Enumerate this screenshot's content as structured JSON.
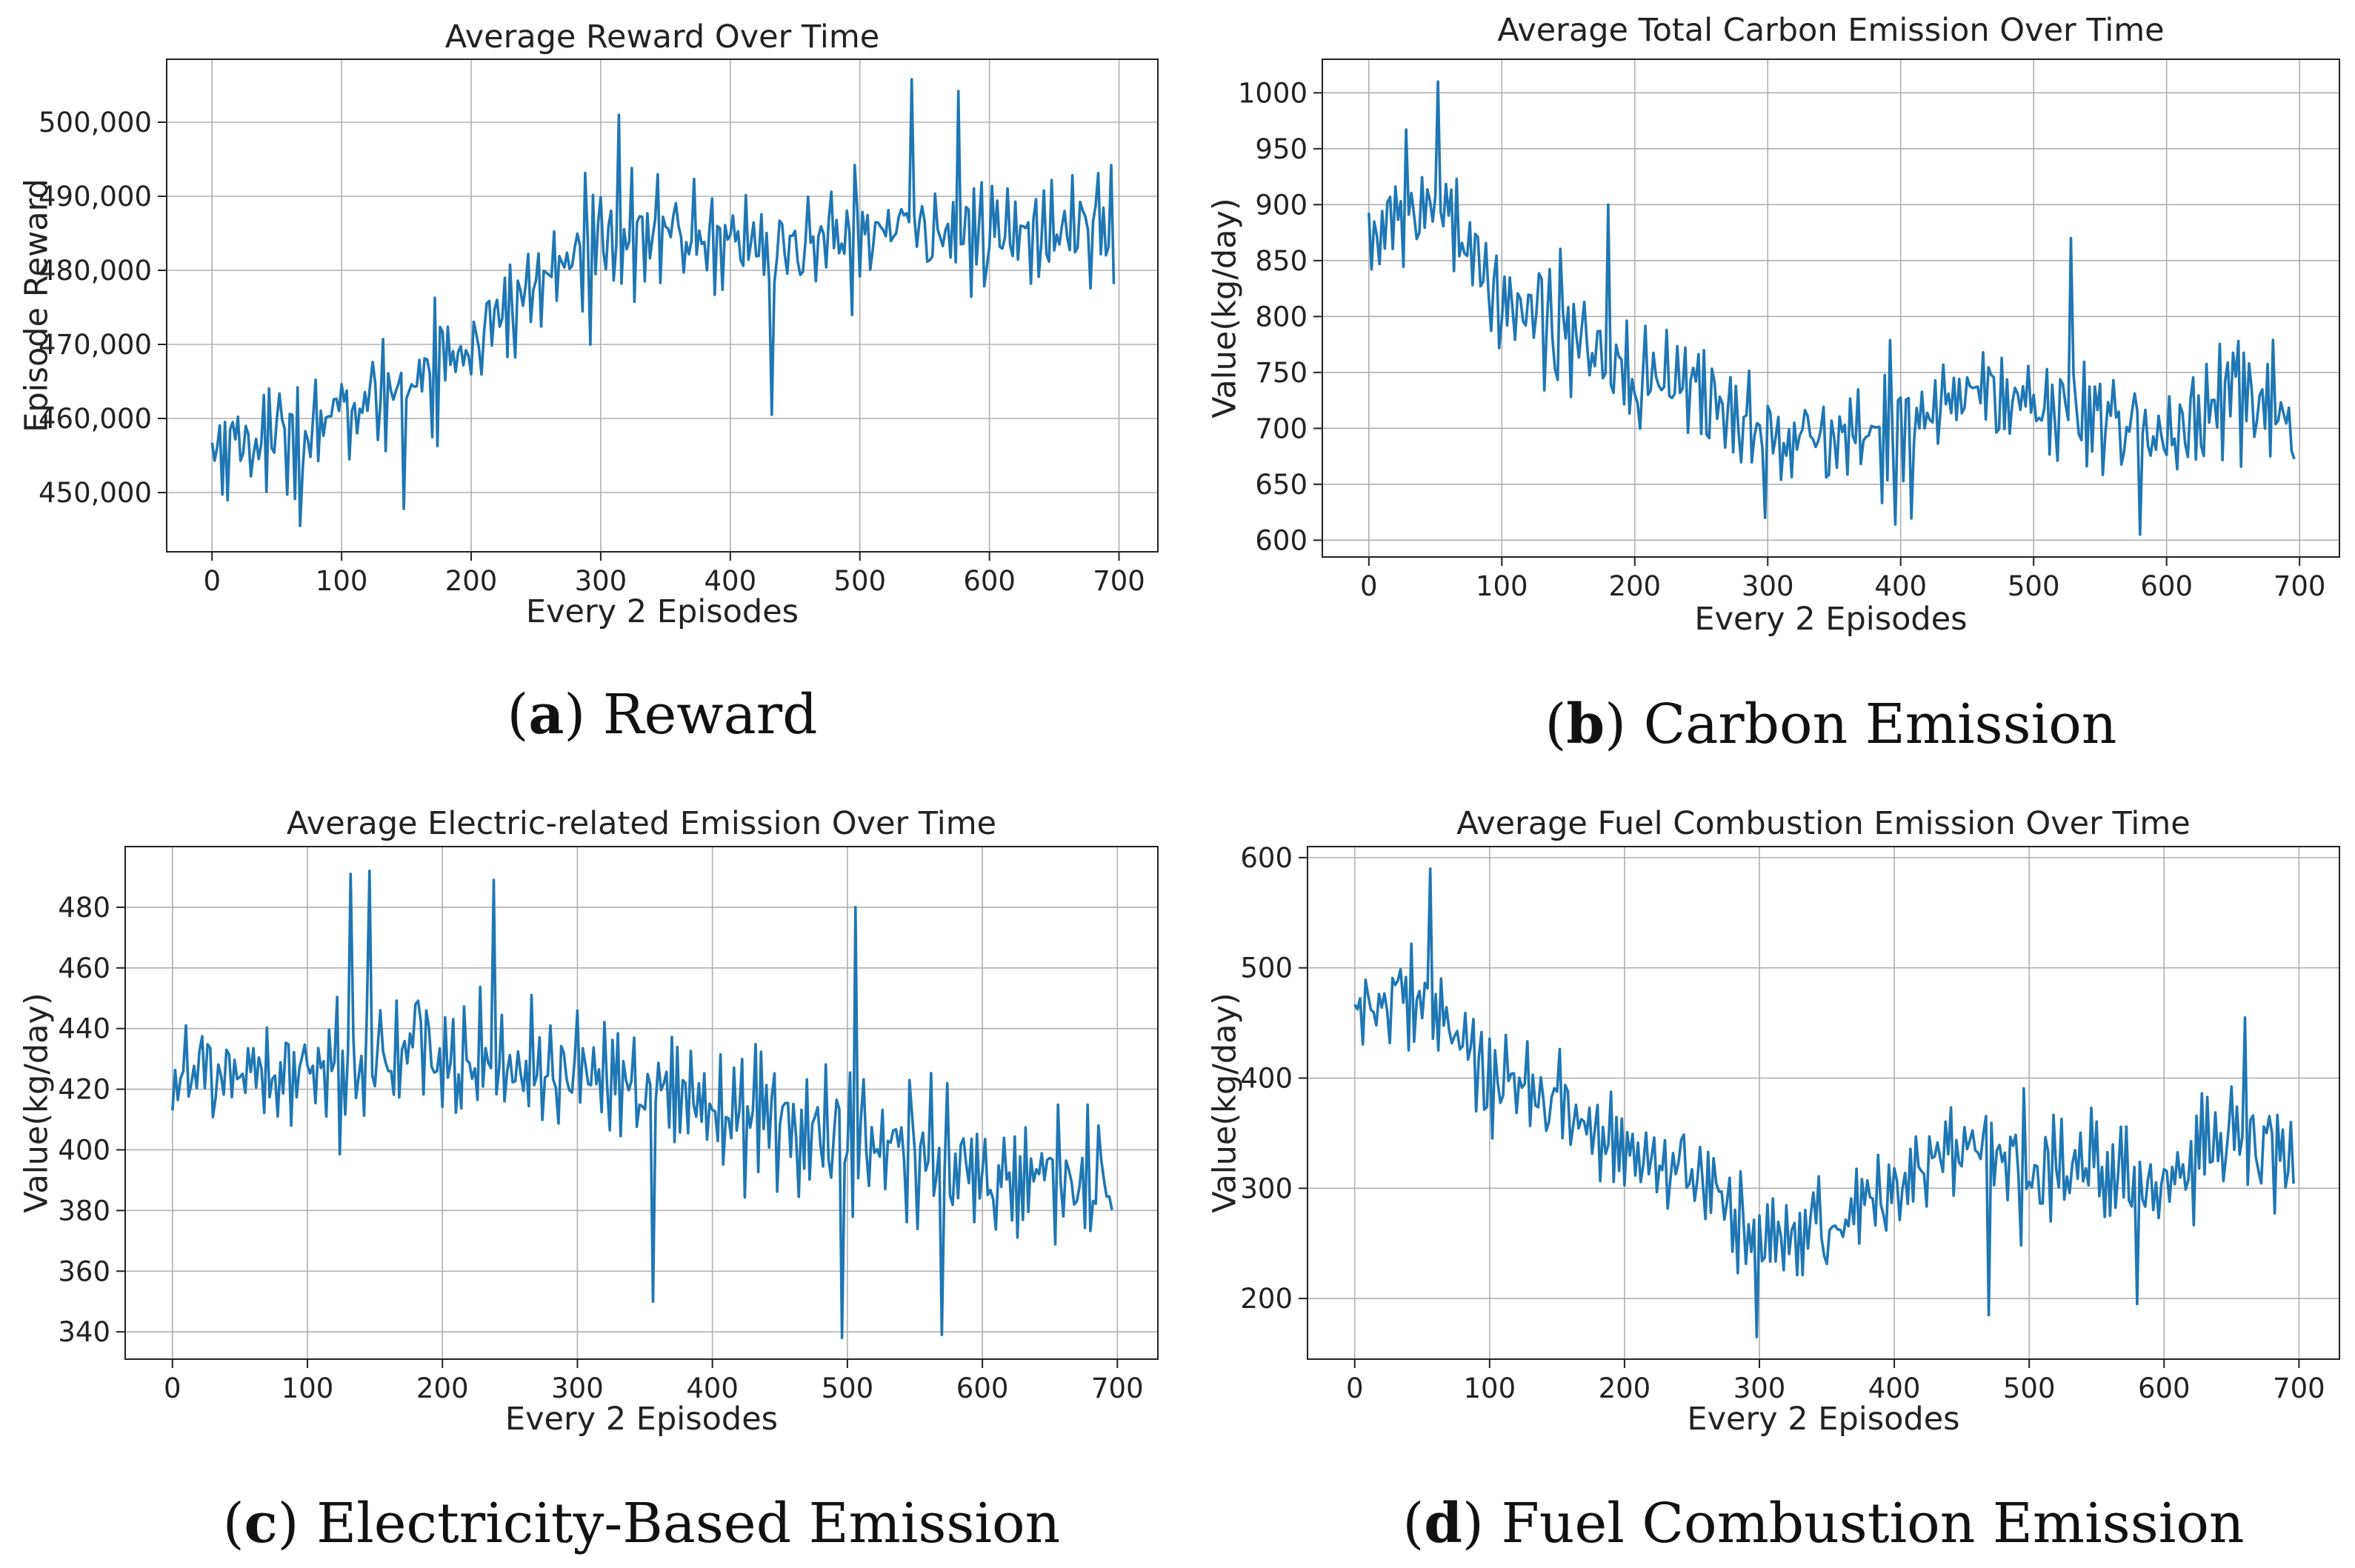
{
  "line_color": "#1f77b4",
  "chart_data": [
    {
      "type": "line",
      "title": "Average Reward Over Time",
      "xlabel": "Every 2 Episodes",
      "ylabel": "Episode Reward",
      "caption": {
        "letter": "a",
        "text": "Reward"
      },
      "xlim": [
        -35,
        730
      ],
      "ylim": [
        442000,
        508500
      ],
      "xticks": [
        "0",
        "100",
        "200",
        "300",
        "400",
        "500",
        "600",
        "700"
      ],
      "yticks": [
        "450,000",
        "460,000",
        "470,000",
        "480,000",
        "490,000",
        "500,000"
      ],
      "ytick_values": [
        450000,
        460000,
        470000,
        480000,
        490000,
        500000
      ],
      "grid": true,
      "series": [
        {
          "name": "Average Reward",
          "x_step": 2,
          "n_points": 349,
          "anchors_x": [
            0,
            50,
            100,
            150,
            200,
            250,
            300,
            350,
            400,
            450,
            500,
            550,
            600,
            650,
            695
          ],
          "trend": [
            456000,
            457500,
            460500,
            465000,
            470000,
            478000,
            484500,
            485000,
            484000,
            483000,
            485000,
            486000,
            484500,
            485000,
            487000
          ],
          "noise": 6000,
          "peaks": [
            [
              313,
              501000
            ],
            [
              432,
              460500
            ],
            [
              540,
              505800
            ],
            [
              575,
              504200
            ],
            [
              68,
              445500
            ],
            [
              148,
              447800
            ]
          ]
        }
      ]
    },
    {
      "type": "line",
      "title": "Average Total Carbon Emission Over Time",
      "xlabel": "Every 2 Episodes",
      "ylabel": "Value(kg/day)",
      "caption": {
        "letter": "b",
        "text": "Carbon Emission"
      },
      "xlim": [
        -35,
        730
      ],
      "ylim": [
        585,
        1030
      ],
      "xticks": [
        "0",
        "100",
        "200",
        "300",
        "400",
        "500",
        "600",
        "700"
      ],
      "yticks": [
        "600",
        "650",
        "700",
        "750",
        "800",
        "850",
        "900",
        "950",
        "1000"
      ],
      "ytick_values": [
        600,
        650,
        700,
        750,
        800,
        850,
        900,
        950,
        1000
      ],
      "grid": true,
      "series": [
        {
          "name": "Total Carbon Emission",
          "x_step": 2,
          "n_points": 349,
          "anchors_x": [
            0,
            25,
            50,
            75,
            100,
            150,
            200,
            250,
            300,
            350,
            400,
            450,
            500,
            550,
            600,
            650,
            695
          ],
          "trend": [
            870,
            890,
            900,
            865,
            815,
            790,
            745,
            735,
            690,
            690,
            700,
            735,
            720,
            710,
            690,
            735,
            705
          ],
          "noise": 42,
          "peaks": [
            [
              52,
              1010
            ],
            [
              298,
              620
            ],
            [
              527,
              870
            ],
            [
              580,
              605
            ],
            [
              180,
              900
            ]
          ]
        }
      ]
    },
    {
      "type": "line",
      "title": "Average Electric-related Emission Over Time",
      "xlabel": "Every 2 Episodes",
      "ylabel": "Value(kg/day)",
      "caption": {
        "letter": "c",
        "text": "Electricity-Based Emission"
      },
      "xlim": [
        -35,
        730
      ],
      "ylim": [
        331,
        500
      ],
      "xticks": [
        "0",
        "100",
        "200",
        "300",
        "400",
        "500",
        "600",
        "700"
      ],
      "yticks": [
        "340",
        "360",
        "380",
        "400",
        "420",
        "440",
        "460",
        "480"
      ],
      "ytick_values": [
        340,
        360,
        380,
        400,
        420,
        440,
        460,
        480
      ],
      "grid": true,
      "series": [
        {
          "name": "Electric-related Emission",
          "x_step": 2,
          "n_points": 349,
          "anchors_x": [
            0,
            100,
            200,
            300,
            400,
            500,
            600,
            695
          ],
          "trend": [
            425,
            428,
            432,
            424,
            414,
            405,
            392,
            390
          ],
          "noise": 19,
          "peaks": [
            [
              132,
              491
            ],
            [
              145,
              492
            ],
            [
              238,
              489
            ],
            [
              495,
              338
            ],
            [
              505,
              480
            ],
            [
              570,
              339
            ],
            [
              355,
              350
            ]
          ]
        }
      ]
    },
    {
      "type": "line",
      "title": "Average Fuel Combustion Emission Over Time",
      "xlabel": "Every 2 Episodes",
      "ylabel": "Value(kg/day)",
      "caption": {
        "letter": "d",
        "text": "Fuel Combustion Emission"
      },
      "xlim": [
        -35,
        730
      ],
      "ylim": [
        145,
        610
      ],
      "xticks": [
        "0",
        "100",
        "200",
        "300",
        "400",
        "500",
        "600",
        "700"
      ],
      "yticks": [
        "200",
        "300",
        "400",
        "500",
        "600"
      ],
      "ytick_values": [
        200,
        300,
        400,
        500,
        600
      ],
      "grid": true,
      "series": [
        {
          "name": "Fuel Combustion Emission",
          "x_step": 2,
          "n_points": 349,
          "anchors_x": [
            0,
            25,
            50,
            75,
            100,
            150,
            200,
            250,
            300,
            350,
            400,
            450,
            500,
            550,
            600,
            650,
            695
          ],
          "trend": [
            455,
            470,
            475,
            440,
            395,
            375,
            330,
            310,
            255,
            265,
            300,
            345,
            320,
            320,
            300,
            350,
            325
          ],
          "noise": 40,
          "peaks": [
            [
              55,
              590
            ],
            [
              298,
              165
            ],
            [
              470,
              185
            ],
            [
              580,
              195
            ],
            [
              660,
              455
            ]
          ]
        }
      ]
    }
  ]
}
